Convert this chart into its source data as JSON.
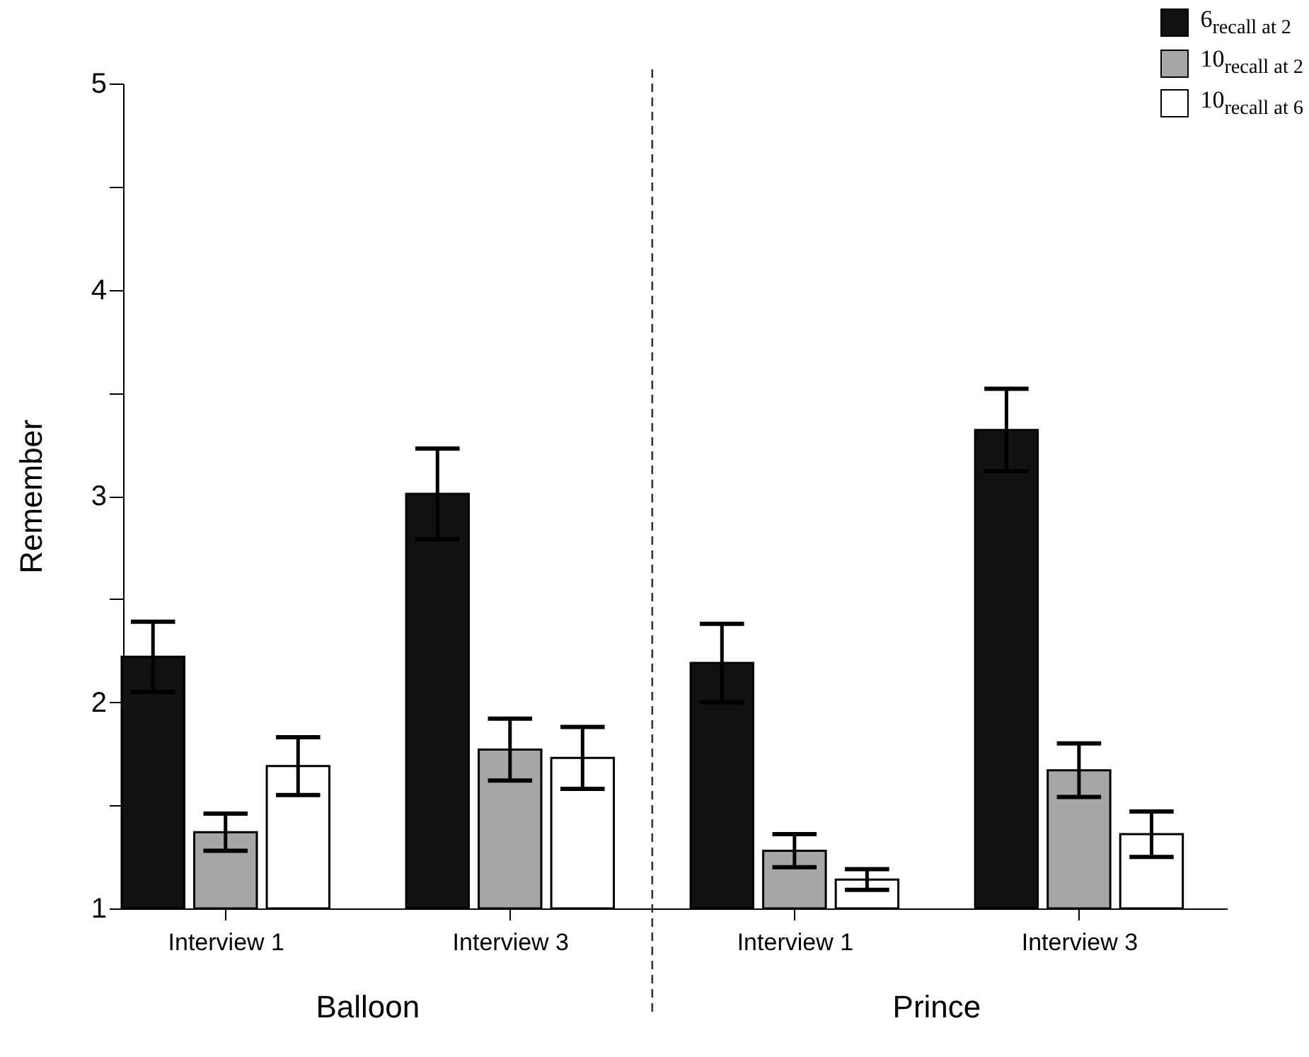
{
  "chart_data": {
    "type": "bar",
    "ylabel": "Remember",
    "categories": [
      "Interview 1",
      "Interview 3",
      "Interview 1",
      "Interview 3"
    ],
    "series": [
      {
        "name": "6$_{recall at 2}$",
        "color": "#111111",
        "values": [
          2.22,
          3.01,
          2.19,
          3.32
        ],
        "errors": [
          0.17,
          0.22,
          0.19,
          0.2
        ]
      },
      {
        "name": "10$_{recall at 2}$",
        "color": "#a6a6a6",
        "values": [
          1.37,
          1.77,
          1.28,
          1.67
        ],
        "errors": [
          0.09,
          0.15,
          0.08,
          0.13
        ]
      },
      {
        "name": "10$_{recall at 6}$",
        "color": "#ffffff",
        "values": [
          1.69,
          1.73,
          1.14,
          1.36
        ],
        "errors": [
          0.14,
          0.15,
          0.05,
          0.11
        ]
      }
    ],
    "ylim": [
      1,
      5
    ],
    "yticks": [
      1,
      {
        "value": 1.5,
        "label": null
      },
      2,
      {
        "value": 2.5,
        "label": null
      },
      3,
      {
        "value": 3.5,
        "label": null
      },
      4,
      {
        "value": 4.5,
        "label": null
      },
      5
    ],
    "annotations": [
      "Balloon",
      "Prince"
    ],
    "legend": "top right",
    "grid": false
  }
}
